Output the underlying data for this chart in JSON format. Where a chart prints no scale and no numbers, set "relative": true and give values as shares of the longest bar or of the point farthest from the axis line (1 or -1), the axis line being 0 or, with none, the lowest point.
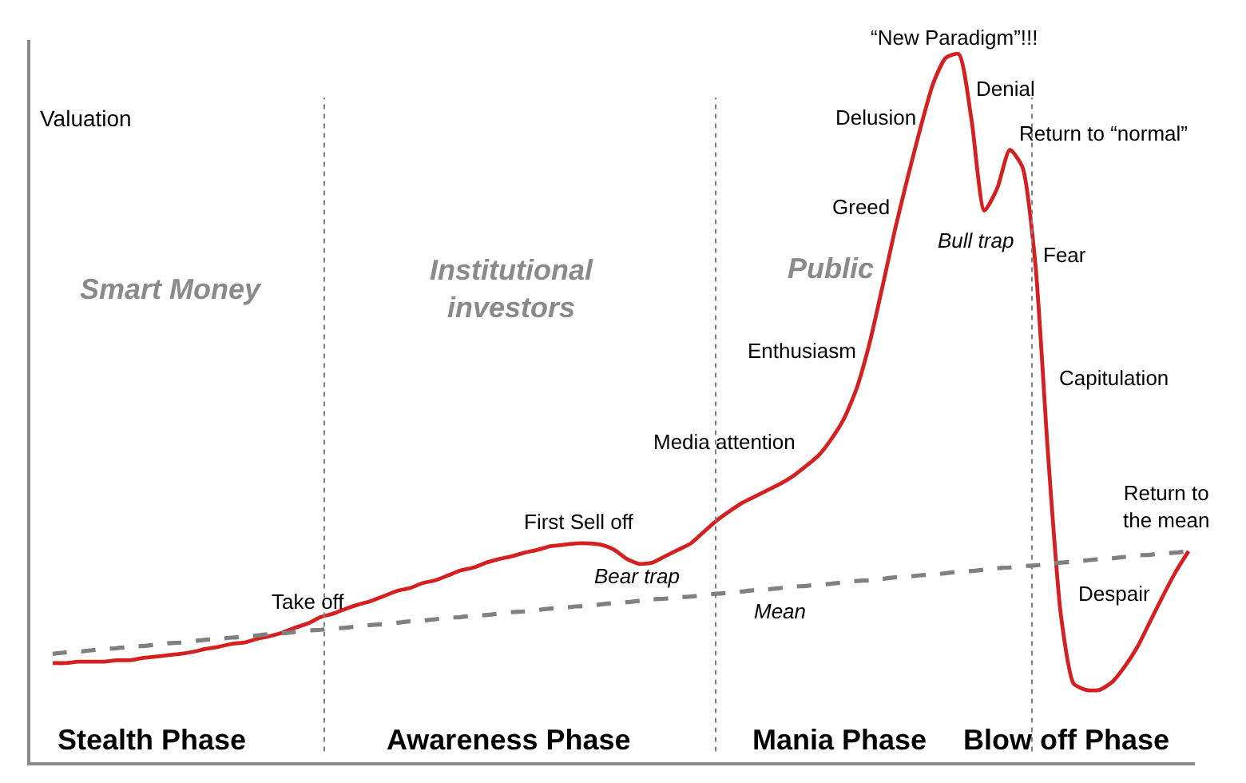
{
  "chart_data": {
    "type": "line",
    "relative": true,
    "ylabel": "Valuation",
    "categories": [
      null,
      null,
      null,
      null,
      null,
      null,
      null,
      null,
      null,
      null,
      null,
      null,
      null,
      null,
      null,
      null,
      null,
      null,
      null,
      null,
      null,
      null,
      null,
      null,
      null,
      null,
      null,
      null,
      null,
      null,
      null,
      null,
      null,
      null,
      null,
      null,
      null,
      null,
      null,
      null,
      null,
      null,
      null,
      null,
      null,
      null,
      null,
      null,
      null,
      null,
      null,
      null,
      null,
      null,
      null,
      null,
      null,
      null,
      null,
      null,
      null,
      null,
      null,
      null,
      null,
      null,
      null,
      null,
      null,
      null,
      null,
      null,
      null,
      null,
      null,
      null,
      null,
      null,
      null,
      null,
      null,
      null,
      null,
      null,
      null,
      null,
      null,
      null,
      null,
      null
    ],
    "series": [
      {
        "color": "#d42020",
        "line_style": "solid",
        "values": [
          0.14,
          0.14,
          0.142,
          0.142,
          0.142,
          0.144,
          0.144,
          0.147,
          0.149,
          0.151,
          0.153,
          0.156,
          0.16,
          0.163,
          0.167,
          0.169,
          0.174,
          0.178,
          0.183,
          0.19,
          0.196,
          0.205,
          0.21,
          0.217,
          0.223,
          0.228,
          0.235,
          0.242,
          0.246,
          0.253,
          0.257,
          0.264,
          0.271,
          0.275,
          0.282,
          0.287,
          0.291,
          0.296,
          0.3,
          0.305,
          0.307,
          0.309,
          0.309,
          0.307,
          0.3,
          0.287,
          0.28,
          0.282,
          0.291,
          0.3,
          0.309,
          0.325,
          0.341,
          0.354,
          0.366,
          0.375,
          0.384,
          0.393,
          0.404,
          0.418,
          0.433,
          0.456,
          0.485,
          0.528,
          0.591,
          0.67,
          0.752,
          0.826,
          0.896,
          0.959,
          0.995,
          1,
          0.907,
          0.779,
          0.81,
          0.865,
          0.84,
          0.704,
          0.433,
          0.208,
          0.111,
          0.102,
          0.102,
          0.113,
          0.135,
          0.163,
          0.199,
          0.235,
          0.269,
          0.298
        ]
      },
      {
        "color": "#808080",
        "line_style": "dashed",
        "values": [
          0.153,
          0.155,
          0.156,
          0.158,
          0.16,
          0.161,
          0.163,
          0.164,
          0.166,
          0.168,
          0.169,
          0.171,
          0.173,
          0.174,
          0.176,
          0.177,
          0.179,
          0.181,
          0.182,
          0.184,
          0.186,
          0.187,
          0.189,
          0.19,
          0.192,
          0.194,
          0.195,
          0.197,
          0.199,
          0.2,
          0.202,
          0.204,
          0.205,
          0.207,
          0.208,
          0.21,
          0.212,
          0.213,
          0.215,
          0.217,
          0.218,
          0.22,
          0.221,
          0.223,
          0.225,
          0.226,
          0.228,
          0.23,
          0.231,
          0.233,
          0.234,
          0.236,
          0.238,
          0.239,
          0.241,
          0.243,
          0.244,
          0.246,
          0.248,
          0.249,
          0.251,
          0.252,
          0.254,
          0.256,
          0.257,
          0.259,
          0.261,
          0.262,
          0.264,
          0.265,
          0.267,
          0.269,
          0.27,
          0.272,
          0.274,
          0.275,
          0.277,
          0.278,
          0.28,
          0.282,
          0.283,
          0.285,
          0.287,
          0.288,
          0.29,
          0.292,
          0.293,
          0.295,
          0.296,
          0.298
        ]
      }
    ],
    "annotations": [
      "Smart Money",
      "Institutional\ninvestors",
      "Public",
      "Stealth Phase",
      "Awareness Phase",
      "Mania Phase",
      "Blow off Phase",
      "Take off",
      "First Sell off",
      "Bear trap",
      "Media attention",
      "Mean",
      "Enthusiasm",
      "Greed",
      "Delusion",
      "“New Paradigm”!!!",
      "Denial",
      "Return to “normal”",
      "Bull trap",
      "Fear",
      "Capitulation",
      "Despair",
      "Return to\nthe mean"
    ]
  }
}
